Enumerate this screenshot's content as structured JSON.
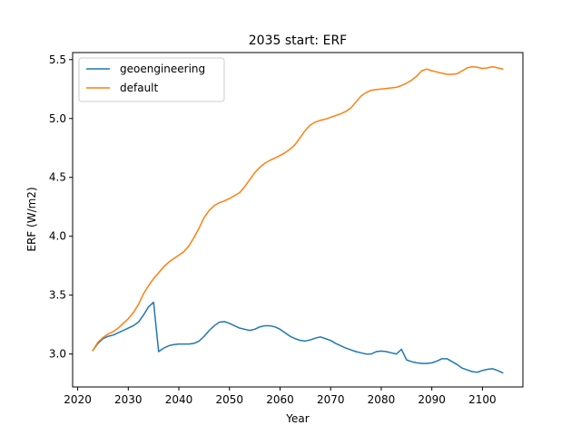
{
  "chart_data": {
    "type": "line",
    "title": "2035 start: ERF",
    "xlabel": "Year",
    "ylabel": "ERF (W/m2)",
    "xlim": [
      2019.0,
      2108.0
    ],
    "ylim": [
      2.72,
      5.56
    ],
    "xticks": [
      2020,
      2030,
      2040,
      2050,
      2060,
      2070,
      2080,
      2090,
      2100
    ],
    "yticks": [
      3.0,
      3.5,
      4.0,
      4.5,
      5.0,
      5.5
    ],
    "grid": false,
    "legend": "top-left",
    "series": [
      {
        "name": "geoengineering",
        "color": "#1f77b4",
        "x": [
          2023,
          2024,
          2025,
          2026,
          2027,
          2028,
          2029,
          2030,
          2031,
          2032,
          2033,
          2034,
          2035,
          2036,
          2037,
          2038,
          2039,
          2040,
          2041,
          2042,
          2043,
          2044,
          2045,
          2046,
          2047,
          2048,
          2049,
          2050,
          2051,
          2052,
          2053,
          2054,
          2055,
          2056,
          2057,
          2058,
          2059,
          2060,
          2061,
          2062,
          2063,
          2064,
          2065,
          2066,
          2067,
          2068,
          2069,
          2070,
          2071,
          2072,
          2073,
          2074,
          2075,
          2076,
          2077,
          2078,
          2079,
          2080,
          2081,
          2082,
          2083,
          2084,
          2085,
          2086,
          2087,
          2088,
          2089,
          2090,
          2091,
          2092,
          2093,
          2094,
          2095,
          2096,
          2097,
          2098,
          2099,
          2100,
          2101,
          2102,
          2103,
          2104
        ],
        "values": [
          3.03,
          3.09,
          3.13,
          3.15,
          3.16,
          3.18,
          3.2,
          3.22,
          3.24,
          3.27,
          3.33,
          3.4,
          3.44,
          3.02,
          3.05,
          3.07,
          3.08,
          3.085,
          3.085,
          3.085,
          3.09,
          3.11,
          3.15,
          3.2,
          3.24,
          3.27,
          3.275,
          3.26,
          3.24,
          3.22,
          3.21,
          3.2,
          3.21,
          3.23,
          3.24,
          3.24,
          3.23,
          3.21,
          3.18,
          3.15,
          3.13,
          3.115,
          3.11,
          3.12,
          3.135,
          3.145,
          3.13,
          3.115,
          3.09,
          3.07,
          3.05,
          3.035,
          3.02,
          3.01,
          3.0,
          3.0,
          3.02,
          3.025,
          3.02,
          3.01,
          3.0,
          3.04,
          2.95,
          2.935,
          2.925,
          2.92,
          2.92,
          2.925,
          2.94,
          2.96,
          2.96,
          2.935,
          2.91,
          2.88,
          2.865,
          2.85,
          2.845,
          2.86,
          2.87,
          2.875,
          2.86,
          2.84
        ]
      },
      {
        "name": "default",
        "color": "#ff7f0e",
        "x": [
          2023,
          2024,
          2025,
          2026,
          2027,
          2028,
          2029,
          2030,
          2031,
          2032,
          2033,
          2034,
          2035,
          2036,
          2037,
          2038,
          2039,
          2040,
          2041,
          2042,
          2043,
          2044,
          2045,
          2046,
          2047,
          2048,
          2049,
          2050,
          2051,
          2052,
          2053,
          2054,
          2055,
          2056,
          2057,
          2058,
          2059,
          2060,
          2061,
          2062,
          2063,
          2064,
          2065,
          2066,
          2067,
          2068,
          2069,
          2070,
          2071,
          2072,
          2073,
          2074,
          2075,
          2076,
          2077,
          2078,
          2079,
          2080,
          2081,
          2082,
          2083,
          2084,
          2085,
          2086,
          2087,
          2088,
          2089,
          2090,
          2091,
          2092,
          2093,
          2094,
          2095,
          2096,
          2097,
          2098,
          2099,
          2100,
          2101,
          2102,
          2103,
          2104
        ],
        "values": [
          3.03,
          3.1,
          3.14,
          3.17,
          3.19,
          3.22,
          3.26,
          3.3,
          3.35,
          3.42,
          3.51,
          3.58,
          3.64,
          3.69,
          3.74,
          3.78,
          3.81,
          3.84,
          3.87,
          3.92,
          3.99,
          4.07,
          4.16,
          4.22,
          4.26,
          4.285,
          4.3,
          4.32,
          4.345,
          4.37,
          4.42,
          4.48,
          4.54,
          4.585,
          4.62,
          4.645,
          4.665,
          4.685,
          4.71,
          4.74,
          4.78,
          4.84,
          4.9,
          4.945,
          4.97,
          4.985,
          4.995,
          5.01,
          5.025,
          5.04,
          5.06,
          5.09,
          5.14,
          5.19,
          5.22,
          5.24,
          5.245,
          5.25,
          5.255,
          5.26,
          5.265,
          5.28,
          5.3,
          5.325,
          5.36,
          5.405,
          5.42,
          5.405,
          5.395,
          5.385,
          5.375,
          5.375,
          5.38,
          5.405,
          5.43,
          5.44,
          5.435,
          5.425,
          5.43,
          5.44,
          5.43,
          5.42
        ]
      }
    ]
  }
}
